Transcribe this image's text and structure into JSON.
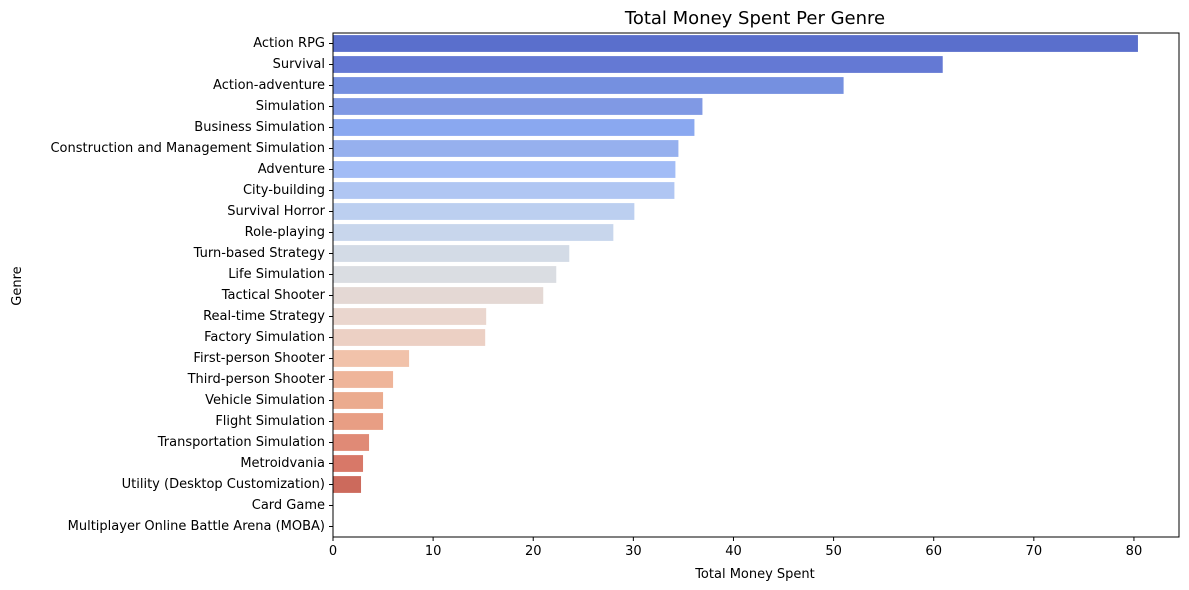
{
  "chart_data": {
    "type": "bar",
    "orientation": "horizontal",
    "title": "Total Money Spent Per Genre",
    "xlabel": "Total Money Spent",
    "ylabel": "Genre",
    "xlim": [
      0,
      84.5
    ],
    "xticks": [
      0,
      10,
      20,
      30,
      40,
      50,
      60,
      70,
      80
    ],
    "grid": false,
    "categories": [
      "Action RPG",
      "Survival",
      "Action-adventure",
      "Simulation",
      "Business Simulation",
      "Construction and Management Simulation",
      "Adventure",
      "City-building",
      "Survival Horror",
      "Role-playing",
      "Turn-based Strategy",
      "Life Simulation",
      "Tactical Shooter",
      "Real-time Strategy",
      "Factory Simulation",
      "First-person Shooter",
      "Third-person Shooter",
      "Vehicle Simulation",
      "Flight Simulation",
      "Transportation Simulation",
      "Metroidvania",
      "Utility (Desktop Customization)",
      "Card Game",
      "Multiplayer Online Battle Arena (MOBA)"
    ],
    "values": [
      80.4,
      60.9,
      51.0,
      36.9,
      36.1,
      34.5,
      34.2,
      34.1,
      30.1,
      28.0,
      23.6,
      22.3,
      21.0,
      15.3,
      15.2,
      7.6,
      6.0,
      5.0,
      5.0,
      3.6,
      3.0,
      2.8,
      0,
      0
    ],
    "colors": [
      "#5a6fcc",
      "#6479d4",
      "#7590e0",
      "#8099e4",
      "#8aa8f0",
      "#96b0ee",
      "#a2bcf6",
      "#b0c6f3",
      "#bccff0",
      "#c8d6ec",
      "#d3dbe6",
      "#dadde2",
      "#e4d8d4",
      "#ead6ce",
      "#ecd0c4",
      "#f1c2aa",
      "#efb59a",
      "#ebab8e",
      "#e89e84",
      "#e08a76",
      "#d87868",
      "#cc6a5c",
      "#c05a4e",
      "#b84a42"
    ]
  }
}
